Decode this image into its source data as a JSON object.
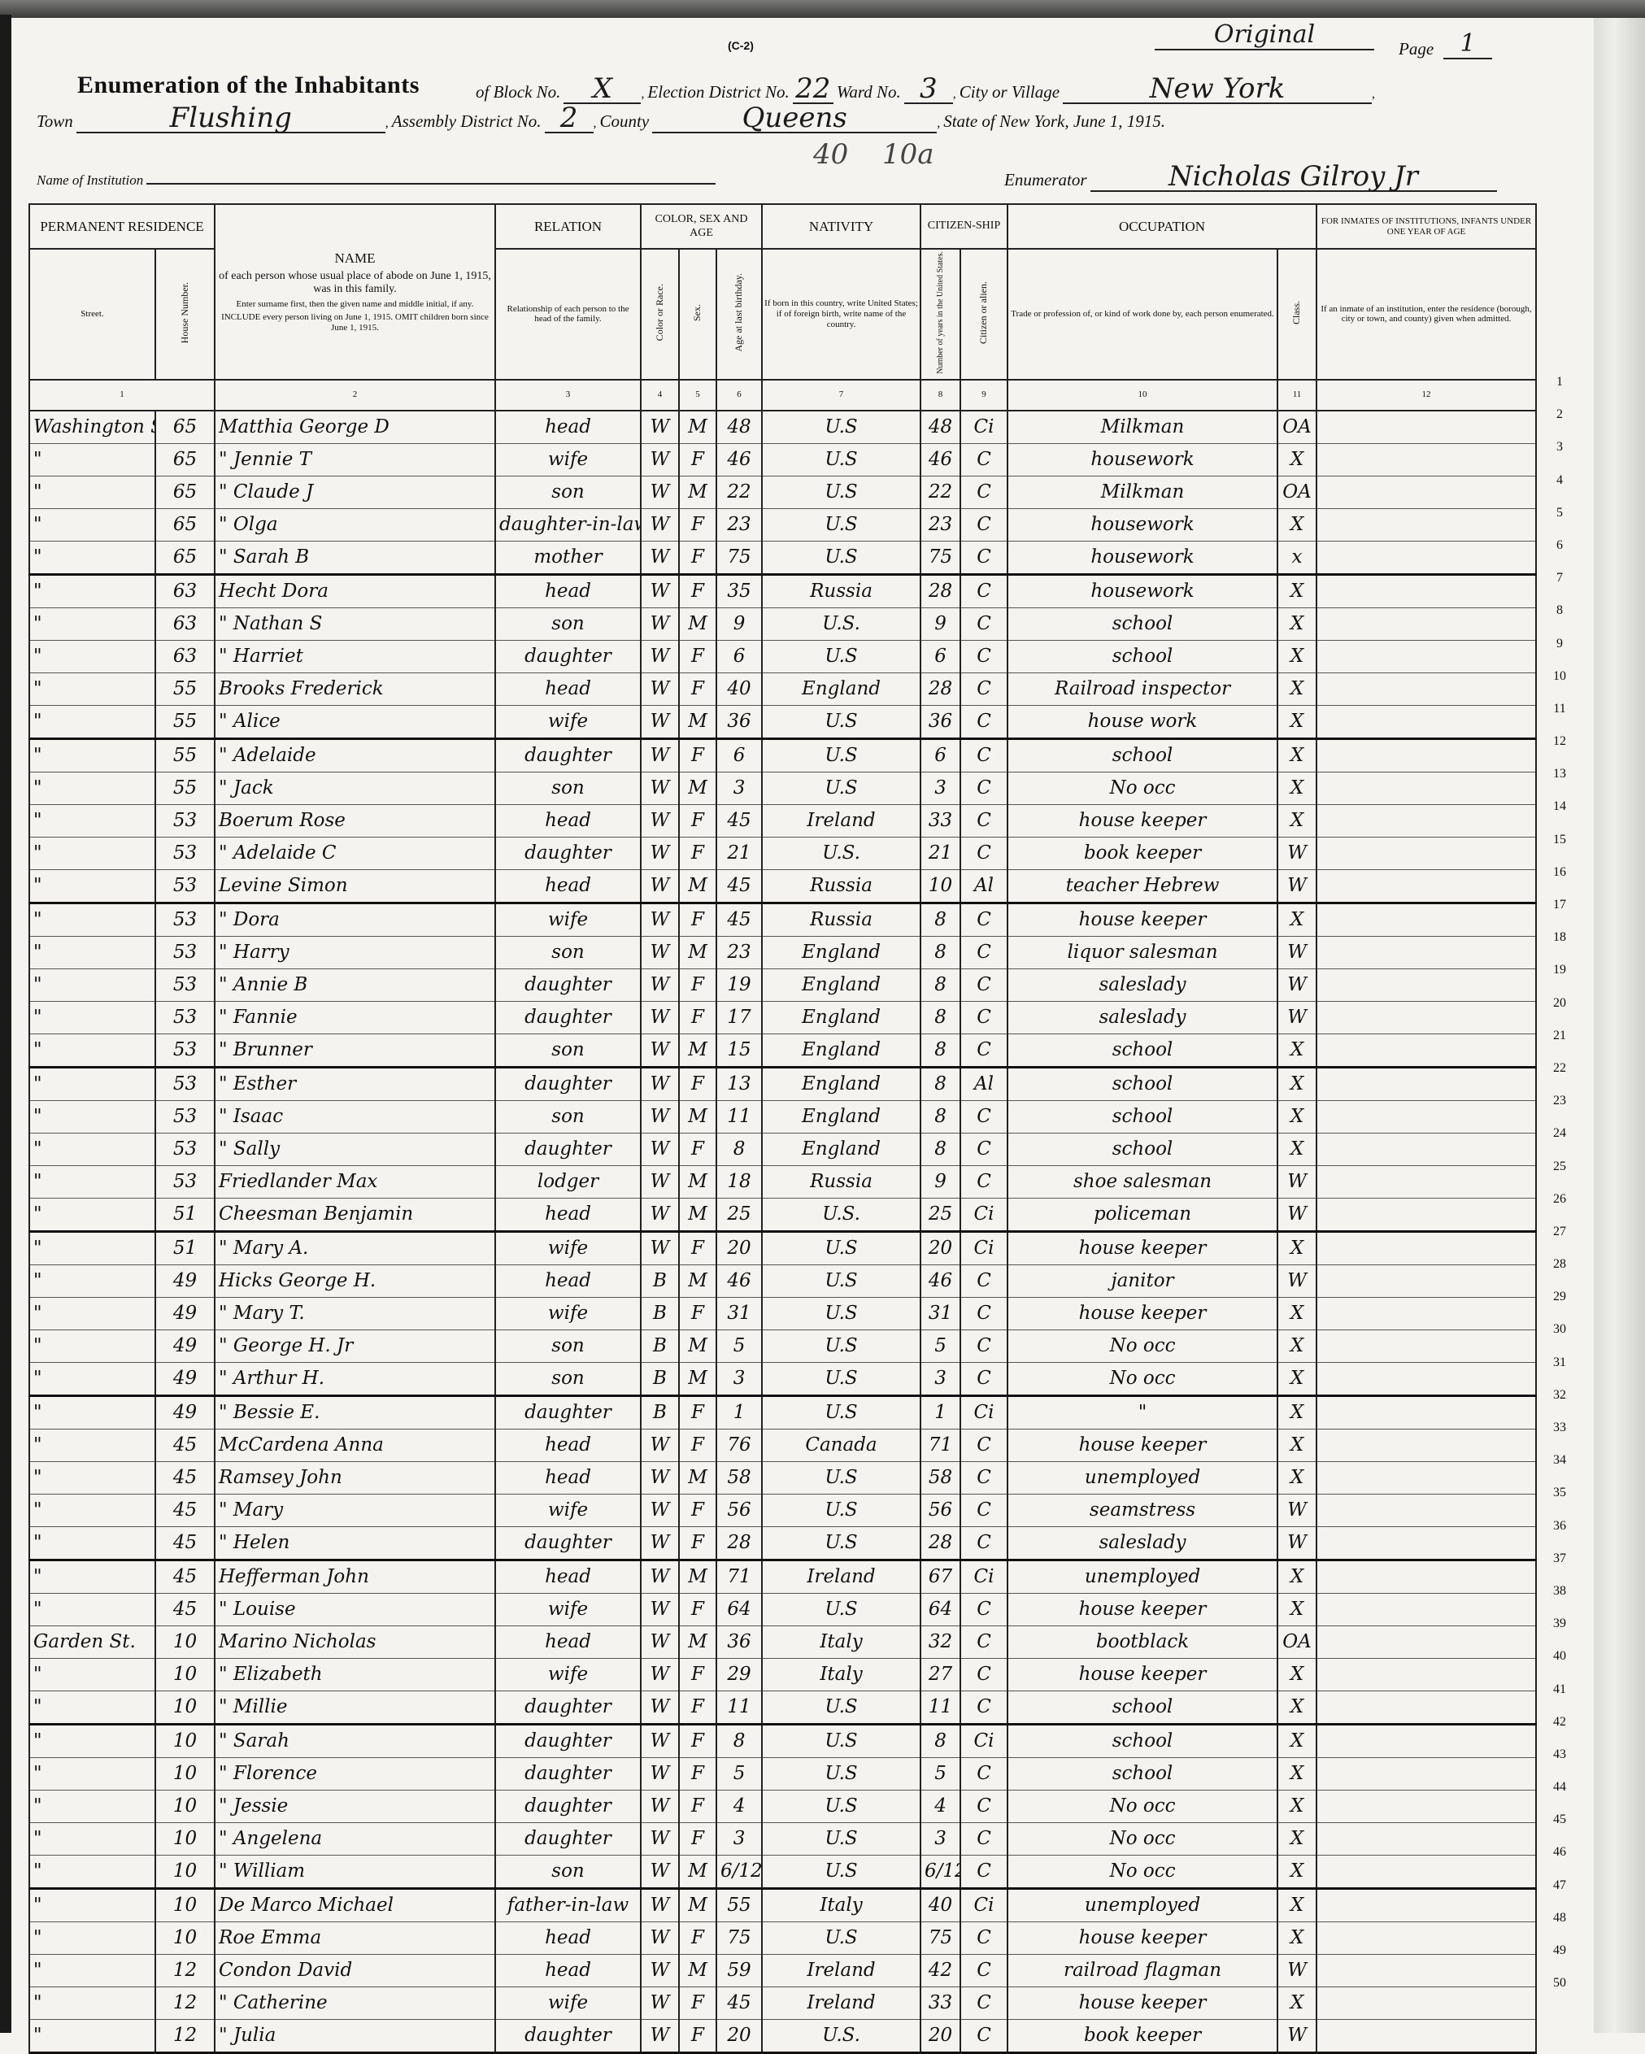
{
  "form_code": "(C-2)",
  "sheet_mark": "Original",
  "page_label": "Page",
  "page_number": "1",
  "title": "Enumeration of the Inhabitants",
  "labels": {
    "block": "of Block No.",
    "election_district": "Election District No.",
    "ward": "Ward No.",
    "city": "City or Village",
    "town": "Town",
    "assembly": "Assembly District No.",
    "county": "County",
    "state_date": "State of New York, June 1, 1915.",
    "institution": "Name of Institution",
    "enumerator": "Enumerator"
  },
  "values": {
    "block": "X",
    "election_district": "22",
    "ward": "3",
    "city": "New York",
    "town": "Flushing",
    "assembly": "2",
    "county": "Queens",
    "institution": "",
    "enumerator": "Nicholas Gilroy Jr",
    "margin_note_1": "40",
    "margin_note_2": "10a"
  },
  "headers": {
    "residence": "PERMANENT RESIDENCE",
    "street": "Street.",
    "house": "House Number.",
    "name": "NAME",
    "name_sub": "of each person whose usual place of abode on June 1, 1915, was in this family.",
    "name_note1": "Enter surname first, then the given name and middle initial, if any.",
    "name_note2": "INCLUDE every person living on June 1, 1915. OMIT children born since June 1, 1915.",
    "relation": "RELATION",
    "relation_sub": "Relationship of each person to the head of the family.",
    "color_sex_age": "COLOR, SEX AND AGE",
    "color": "Color or Race.",
    "sex": "Sex.",
    "age": "Age at last birthday.",
    "nativity": "NATIVITY",
    "nativity_sub": "If born in this country, write United States; if of foreign birth, write name of the country.",
    "citizenship": "CITIZEN-SHIP",
    "years": "Number of years in the United States.",
    "citizen": "Citizen or alien.",
    "occupation": "OCCUPATION",
    "occupation_sub": "Trade or profession of, or kind of work done by, each person enumerated.",
    "class": "Class.",
    "inmates": "FOR INMATES OF INSTITUTIONS, INFANTS UNDER ONE YEAR OF AGE",
    "inmates_sub": "If an inmate of an institution, enter the residence (borough, city or town, and county) given when admitted.",
    "col_numbers": [
      "1",
      "2",
      "3",
      "4",
      "5",
      "6",
      "7",
      "8",
      "9",
      "10",
      "11",
      "12"
    ]
  },
  "columns": [
    "street",
    "house",
    "name",
    "relation",
    "color",
    "sex",
    "age",
    "nativity",
    "years",
    "citizen",
    "occupation",
    "class",
    "inmate"
  ],
  "rows": [
    [
      "Washington St.",
      "65",
      "Matthia George D",
      "head",
      "W",
      "M",
      "48",
      "U.S",
      "48",
      "Ci",
      "Milkman",
      "OA",
      ""
    ],
    [
      "\"",
      "65",
      "\" Jennie T",
      "wife",
      "W",
      "F",
      "46",
      "U.S",
      "46",
      "C",
      "housework",
      "X",
      ""
    ],
    [
      "\"",
      "65",
      "\" Claude J",
      "son",
      "W",
      "M",
      "22",
      "U.S",
      "22",
      "C",
      "Milkman",
      "OA",
      ""
    ],
    [
      "\"",
      "65",
      "\" Olga",
      "daughter-in-law",
      "W",
      "F",
      "23",
      "U.S",
      "23",
      "C",
      "housework",
      "X",
      ""
    ],
    [
      "\"",
      "65",
      "\" Sarah B",
      "mother",
      "W",
      "F",
      "75",
      "U.S",
      "75",
      "C",
      "housework",
      "x",
      ""
    ],
    [
      "\"",
      "63",
      "Hecht Dora",
      "head",
      "W",
      "F",
      "35",
      "Russia",
      "28",
      "C",
      "housework",
      "X",
      ""
    ],
    [
      "\"",
      "63",
      "\" Nathan S",
      "son",
      "W",
      "M",
      "9",
      "U.S.",
      "9",
      "C",
      "school",
      "X",
      ""
    ],
    [
      "\"",
      "63",
      "\" Harriet",
      "daughter",
      "W",
      "F",
      "6",
      "U.S",
      "6",
      "C",
      "school",
      "X",
      ""
    ],
    [
      "\"",
      "55",
      "Brooks Frederick",
      "head",
      "W",
      "F",
      "40",
      "England",
      "28",
      "C",
      "Railroad inspector",
      "X",
      ""
    ],
    [
      "\"",
      "55",
      "\" Alice",
      "wife",
      "W",
      "M",
      "36",
      "U.S",
      "36",
      "C",
      "house work",
      "X",
      ""
    ],
    [
      "\"",
      "55",
      "\" Adelaide",
      "daughter",
      "W",
      "F",
      "6",
      "U.S",
      "6",
      "C",
      "school",
      "X",
      ""
    ],
    [
      "\"",
      "55",
      "\" Jack",
      "son",
      "W",
      "M",
      "3",
      "U.S",
      "3",
      "C",
      "No occ",
      "X",
      ""
    ],
    [
      "\"",
      "53",
      "Boerum Rose",
      "head",
      "W",
      "F",
      "45",
      "Ireland",
      "33",
      "C",
      "house keeper",
      "X",
      ""
    ],
    [
      "\"",
      "53",
      "\" Adelaide C",
      "daughter",
      "W",
      "F",
      "21",
      "U.S.",
      "21",
      "C",
      "book keeper",
      "W",
      ""
    ],
    [
      "\"",
      "53",
      "Levine Simon",
      "head",
      "W",
      "M",
      "45",
      "Russia",
      "10",
      "Al",
      "teacher Hebrew",
      "W",
      ""
    ],
    [
      "\"",
      "53",
      "\" Dora",
      "wife",
      "W",
      "F",
      "45",
      "Russia",
      "8",
      "C",
      "house keeper",
      "X",
      ""
    ],
    [
      "\"",
      "53",
      "\" Harry",
      "son",
      "W",
      "M",
      "23",
      "England",
      "8",
      "C",
      "liquor salesman",
      "W",
      ""
    ],
    [
      "\"",
      "53",
      "\" Annie B",
      "daughter",
      "W",
      "F",
      "19",
      "England",
      "8",
      "C",
      "saleslady",
      "W",
      ""
    ],
    [
      "\"",
      "53",
      "\" Fannie",
      "daughter",
      "W",
      "F",
      "17",
      "England",
      "8",
      "C",
      "saleslady",
      "W",
      ""
    ],
    [
      "\"",
      "53",
      "\" Brunner",
      "son",
      "W",
      "M",
      "15",
      "England",
      "8",
      "C",
      "school",
      "X",
      ""
    ],
    [
      "\"",
      "53",
      "\" Esther",
      "daughter",
      "W",
      "F",
      "13",
      "England",
      "8",
      "Al",
      "school",
      "X",
      ""
    ],
    [
      "\"",
      "53",
      "\" Isaac",
      "son",
      "W",
      "M",
      "11",
      "England",
      "8",
      "C",
      "school",
      "X",
      ""
    ],
    [
      "\"",
      "53",
      "\" Sally",
      "daughter",
      "W",
      "F",
      "8",
      "England",
      "8",
      "C",
      "school",
      "X",
      ""
    ],
    [
      "\"",
      "53",
      "Friedlander Max",
      "lodger",
      "W",
      "M",
      "18",
      "Russia",
      "9",
      "C",
      "shoe salesman",
      "W",
      ""
    ],
    [
      "\"",
      "51",
      "Cheesman Benjamin",
      "head",
      "W",
      "M",
      "25",
      "U.S.",
      "25",
      "Ci",
      "policeman",
      "W",
      ""
    ],
    [
      "\"",
      "51",
      "\" Mary A.",
      "wife",
      "W",
      "F",
      "20",
      "U.S",
      "20",
      "Ci",
      "house keeper",
      "X",
      ""
    ],
    [
      "\"",
      "49",
      "Hicks George H.",
      "head",
      "B",
      "M",
      "46",
      "U.S",
      "46",
      "C",
      "janitor",
      "W",
      ""
    ],
    [
      "\"",
      "49",
      "\" Mary T.",
      "wife",
      "B",
      "F",
      "31",
      "U.S",
      "31",
      "C",
      "house keeper",
      "X",
      ""
    ],
    [
      "\"",
      "49",
      "\" George H. Jr",
      "son",
      "B",
      "M",
      "5",
      "U.S",
      "5",
      "C",
      "No occ",
      "X",
      ""
    ],
    [
      "\"",
      "49",
      "\" Arthur H.",
      "son",
      "B",
      "M",
      "3",
      "U.S",
      "3",
      "C",
      "No occ",
      "X",
      ""
    ],
    [
      "\"",
      "49",
      "\" Bessie E.",
      "daughter",
      "B",
      "F",
      "1",
      "U.S",
      "1",
      "Ci",
      "\"",
      "X",
      ""
    ],
    [
      "\"",
      "45",
      "McCardena Anna",
      "head",
      "W",
      "F",
      "76",
      "Canada",
      "71",
      "C",
      "house keeper",
      "X",
      ""
    ],
    [
      "\"",
      "45",
      "Ramsey John",
      "head",
      "W",
      "M",
      "58",
      "U.S",
      "58",
      "C",
      "unemployed",
      "X",
      ""
    ],
    [
      "\"",
      "45",
      "\" Mary",
      "wife",
      "W",
      "F",
      "56",
      "U.S",
      "56",
      "C",
      "seamstress",
      "W",
      ""
    ],
    [
      "\"",
      "45",
      "\" Helen",
      "daughter",
      "W",
      "F",
      "28",
      "U.S",
      "28",
      "C",
      "saleslady",
      "W",
      ""
    ],
    [
      "\"",
      "45",
      "Hefferman John",
      "head",
      "W",
      "M",
      "71",
      "Ireland",
      "67",
      "Ci",
      "unemployed",
      "X",
      ""
    ],
    [
      "\"",
      "45",
      "\" Louise",
      "wife",
      "W",
      "F",
      "64",
      "U.S",
      "64",
      "C",
      "house keeper",
      "X",
      ""
    ],
    [
      "Garden St.",
      "10",
      "Marino Nicholas",
      "head",
      "W",
      "M",
      "36",
      "Italy",
      "32",
      "C",
      "bootblack",
      "OA",
      ""
    ],
    [
      "\"",
      "10",
      "\" Elizabeth",
      "wife",
      "W",
      "F",
      "29",
      "Italy",
      "27",
      "C",
      "house keeper",
      "X",
      ""
    ],
    [
      "\"",
      "10",
      "\" Millie",
      "daughter",
      "W",
      "F",
      "11",
      "U.S",
      "11",
      "C",
      "school",
      "X",
      ""
    ],
    [
      "\"",
      "10",
      "\" Sarah",
      "daughter",
      "W",
      "F",
      "8",
      "U.S",
      "8",
      "Ci",
      "school",
      "X",
      ""
    ],
    [
      "\"",
      "10",
      "\" Florence",
      "daughter",
      "W",
      "F",
      "5",
      "U.S",
      "5",
      "C",
      "school",
      "X",
      ""
    ],
    [
      "\"",
      "10",
      "\" Jessie",
      "daughter",
      "W",
      "F",
      "4",
      "U.S",
      "4",
      "C",
      "No occ",
      "X",
      ""
    ],
    [
      "\"",
      "10",
      "\" Angelena",
      "daughter",
      "W",
      "F",
      "3",
      "U.S",
      "3",
      "C",
      "No occ",
      "X",
      ""
    ],
    [
      "\"",
      "10",
      "\" William",
      "son",
      "W",
      "M",
      "6/12",
      "U.S",
      "6/12",
      "C",
      "No occ",
      "X",
      ""
    ],
    [
      "\"",
      "10",
      "De Marco Michael",
      "father-in-law",
      "W",
      "M",
      "55",
      "Italy",
      "40",
      "Ci",
      "unemployed",
      "X",
      ""
    ],
    [
      "\"",
      "10",
      "Roe Emma",
      "head",
      "W",
      "F",
      "75",
      "U.S",
      "75",
      "C",
      "house keeper",
      "X",
      ""
    ],
    [
      "\"",
      "12",
      "Condon David",
      "head",
      "W",
      "M",
      "59",
      "Ireland",
      "42",
      "C",
      "railroad flagman",
      "W",
      ""
    ],
    [
      "\"",
      "12",
      "\" Catherine",
      "wife",
      "W",
      "F",
      "45",
      "Ireland",
      "33",
      "C",
      "house keeper",
      "X",
      ""
    ],
    [
      "\"",
      "12",
      "\" Julia",
      "daughter",
      "W",
      "F",
      "20",
      "U.S.",
      "20",
      "C",
      "book keeper",
      "W",
      ""
    ]
  ]
}
